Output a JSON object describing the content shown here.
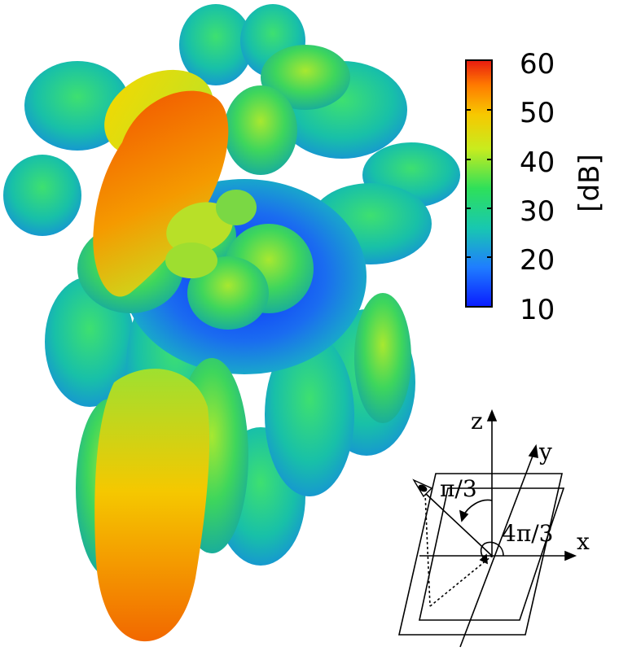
{
  "colorbar": {
    "ticks": [
      "60",
      "50",
      "40",
      "30",
      "20",
      "10"
    ],
    "unit": "[dB]",
    "colors": {
      "c0": "#0a1cff",
      "c1": "#1f7dff",
      "c2": "#18c8b0",
      "c3": "#2ee05a",
      "c4": "#c8ec1e",
      "c5": "#f7c800",
      "c6": "#ff7a00",
      "c7": "#e81a10"
    }
  },
  "inset": {
    "axis_z": "z",
    "axis_y": "y",
    "axis_x": "x",
    "angle_theta": "π/3",
    "angle_phi": "4π/3"
  },
  "pattern": {
    "main_beam_color": "#f26a00",
    "side_lobe_color": "#3ed65c",
    "null_color": "#1550f0",
    "specular_color": "#f5d400"
  }
}
